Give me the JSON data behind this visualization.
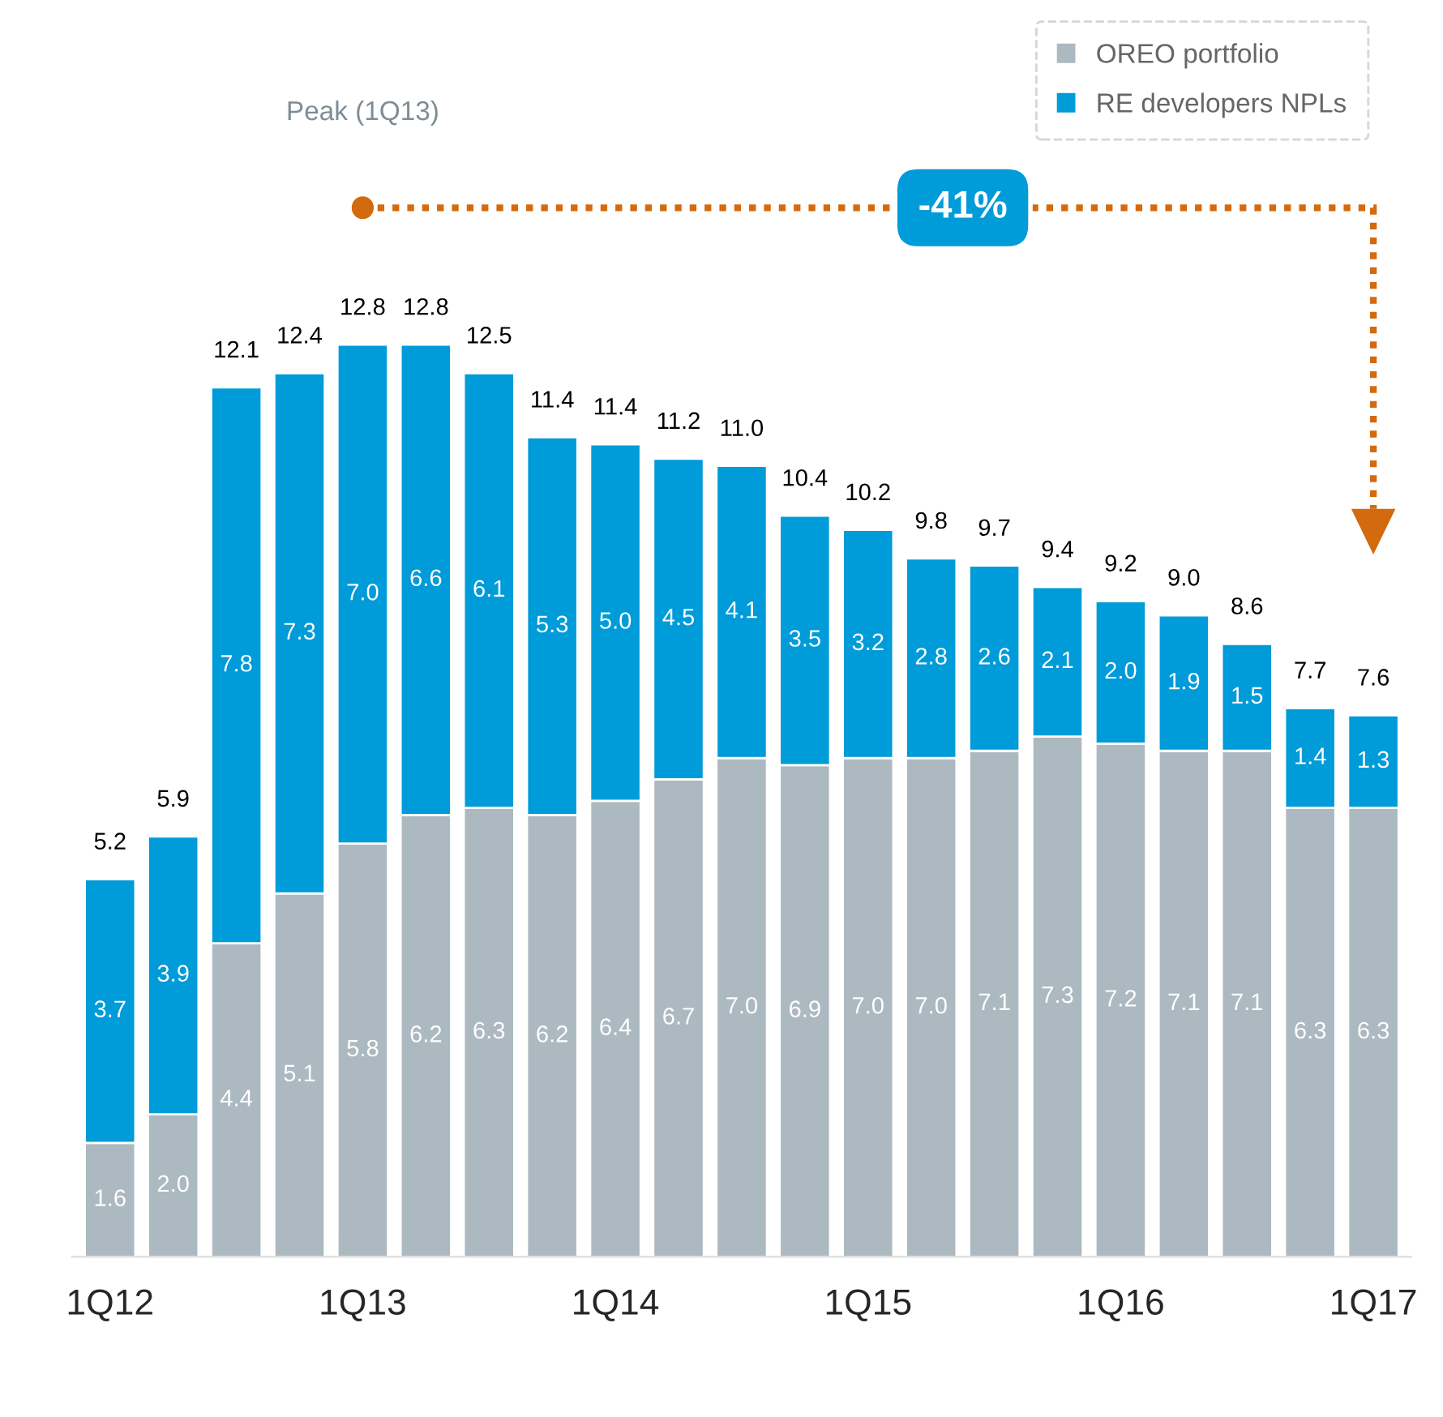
{
  "chart_data": {
    "type": "bar",
    "stacked": true,
    "categories": [
      "1Q12",
      null,
      null,
      null,
      "1Q13",
      null,
      null,
      null,
      "1Q14",
      null,
      null,
      null,
      "1Q15",
      null,
      null,
      null,
      "1Q16",
      null,
      null,
      null,
      "1Q17"
    ],
    "series": [
      {
        "name": "OREO portfolio",
        "color": "#adb9c0",
        "values": [
          1.6,
          2.0,
          4.4,
          5.1,
          5.8,
          6.2,
          6.3,
          6.2,
          6.4,
          6.7,
          7.0,
          6.9,
          7.0,
          7.0,
          7.1,
          7.3,
          7.2,
          7.1,
          7.1,
          6.3,
          6.3
        ],
        "value_labels": [
          "1.6",
          "2.0",
          "4.4",
          "5.1",
          "5.8",
          "6.2",
          "6.3",
          "6.2",
          "6.4",
          "6.7",
          "7.0",
          "6.9",
          "7.0",
          "7.0",
          "7.1",
          "7.3",
          "7.2",
          "7.1",
          "7.1",
          "6.3",
          "6.3"
        ]
      },
      {
        "name": "RE developers NPLs",
        "color": "#009bd9",
        "values": [
          3.7,
          3.9,
          7.8,
          7.3,
          7.0,
          6.6,
          6.1,
          5.3,
          5.0,
          4.5,
          4.1,
          3.5,
          3.2,
          2.8,
          2.6,
          2.1,
          2.0,
          1.9,
          1.5,
          1.4,
          1.3
        ],
        "value_labels": [
          "3.7",
          "3.9",
          "7.8",
          "7.3",
          "7.0",
          "6.6",
          "6.1",
          "5.3",
          "5.0",
          "4.5",
          "4.1",
          "3.5",
          "3.2",
          "2.8",
          "2.6",
          "2.1",
          "2.0",
          "1.9",
          "1.5",
          "1.4",
          "1.3"
        ]
      }
    ],
    "totals": [
      "5.2",
      "5.9",
      "12.1",
      "12.4",
      "12.8",
      "12.8",
      "12.5",
      "11.4",
      "11.4",
      "11.2",
      "11.0",
      "10.4",
      "10.2",
      "9.8",
      "9.7",
      "9.4",
      "9.2",
      "9.0",
      "8.6",
      "7.7",
      "7.6"
    ],
    "tick_labels": "x",
    "legend": "top right",
    "annotations": [
      "Peak (1Q13)",
      "-41%"
    ]
  }
}
